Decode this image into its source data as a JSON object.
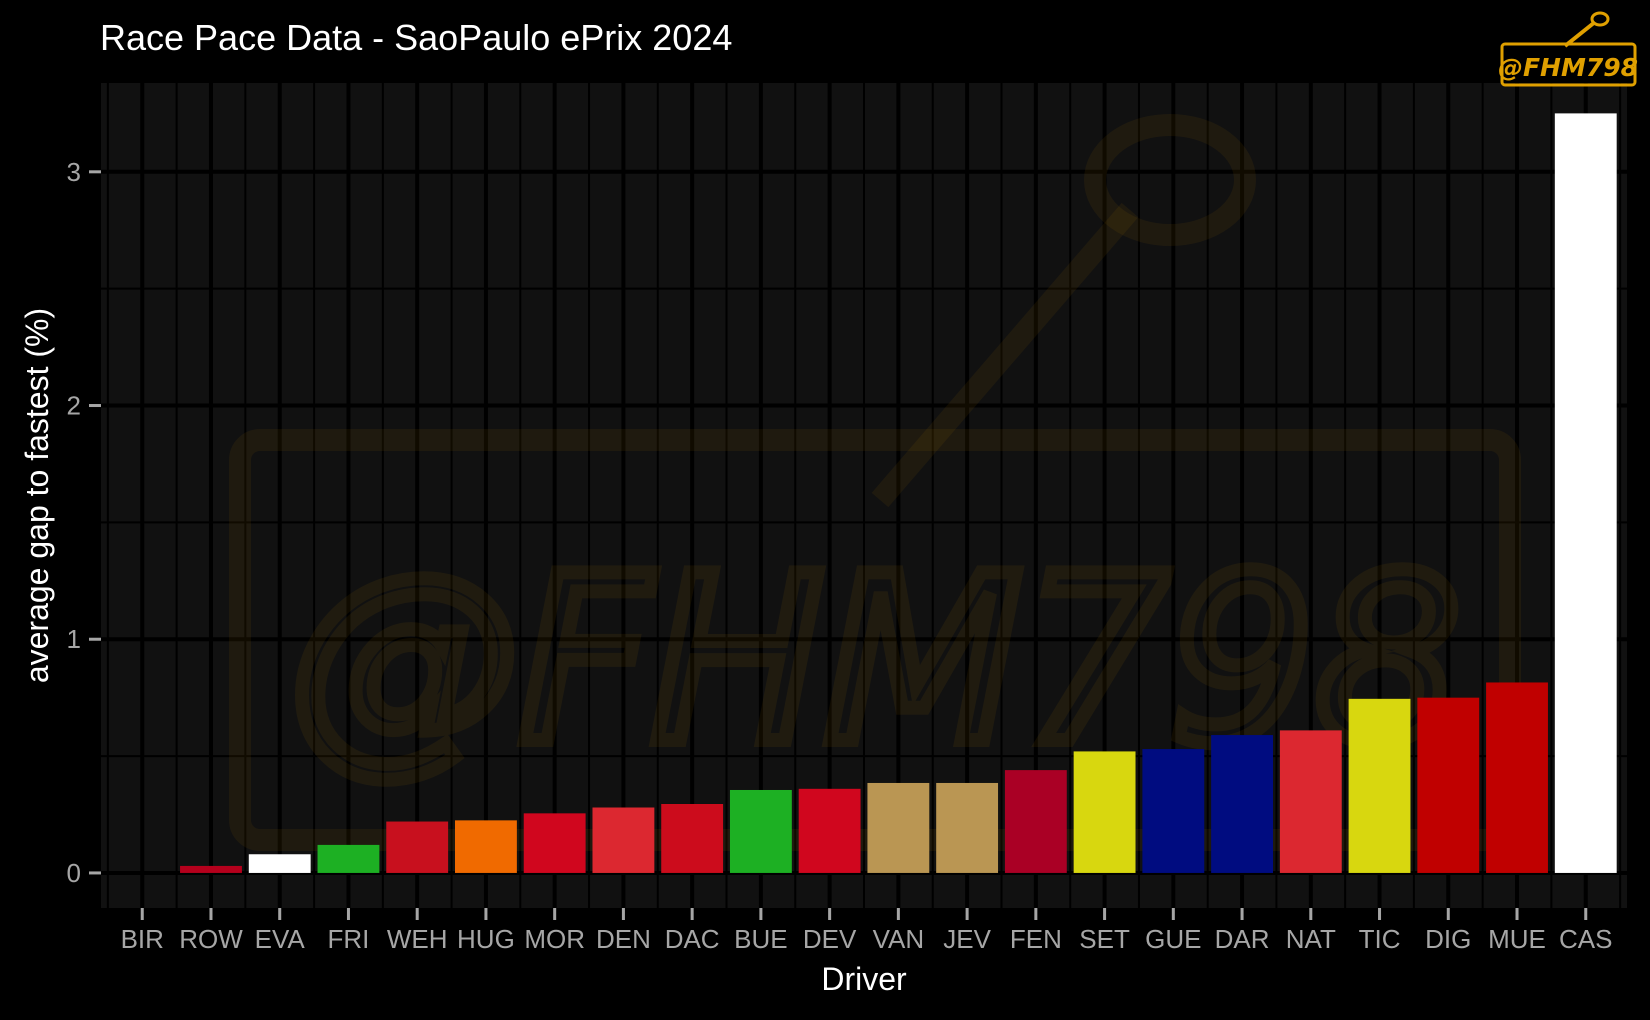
{
  "chart_data": {
    "type": "bar",
    "title": "Race Pace Data - SaoPaulo ePrix 2024",
    "xlabel": "Driver",
    "ylabel": "average gap to fastest (%)",
    "ylim": [
      -0.15,
      3.38
    ],
    "yticks": [
      0,
      1,
      2,
      3
    ],
    "grid": true,
    "categories": [
      "BIR",
      "ROW",
      "EVA",
      "FRI",
      "WEH",
      "HUG",
      "MOR",
      "DEN",
      "DAC",
      "BUE",
      "DEV",
      "VAN",
      "JEV",
      "FEN",
      "SET",
      "GUE",
      "DAR",
      "NAT",
      "TIC",
      "DIG",
      "MUE",
      "CAS"
    ],
    "values": [
      0.0,
      0.03,
      0.08,
      0.12,
      0.22,
      0.225,
      0.255,
      0.28,
      0.295,
      0.355,
      0.36,
      0.385,
      0.385,
      0.44,
      0.52,
      0.53,
      0.59,
      0.61,
      0.745,
      0.75,
      0.815,
      3.25
    ],
    "colors": [
      "#c8001e",
      "#b5001c",
      "#ffffff",
      "#1db023",
      "#c8101e",
      "#f06a00",
      "#d0061e",
      "#dc2830",
      "#cc0c1c",
      "#1db023",
      "#d0061e",
      "#ba9653",
      "#ba9653",
      "#aa0025",
      "#d8d70f",
      "#000c80",
      "#000c80",
      "#dc2830",
      "#d8d70f",
      "#c00000",
      "#c00000",
      "#ffffff"
    ]
  },
  "watermark": {
    "text": "@FHM798",
    "color": "#e0a000"
  }
}
